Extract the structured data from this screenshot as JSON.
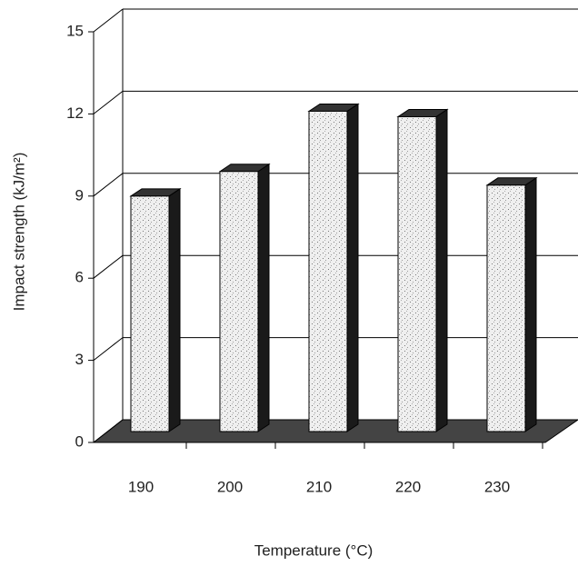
{
  "chart_data": {
    "type": "bar3d",
    "xlabel": "Temperature (°C)",
    "ylabel": "Impact strength (kJ/m²)",
    "categories": [
      "190",
      "200",
      "210",
      "220",
      "230"
    ],
    "values": [
      8.6,
      9.5,
      11.7,
      11.5,
      9.0
    ],
    "color": "#ececec",
    "ylim": [
      0,
      15
    ],
    "yticks": [
      0,
      3,
      6,
      9,
      12,
      15
    ],
    "grid": true
  }
}
